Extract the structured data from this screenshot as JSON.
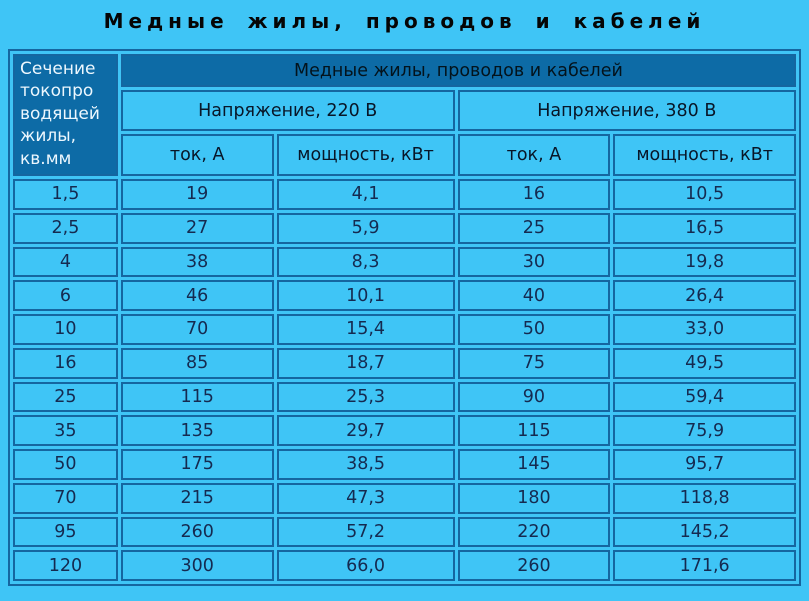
{
  "title": "Медные жилы, проводов и кабелей",
  "chart_data": {
    "type": "table",
    "title": "Медные жилы, проводов и кабелей",
    "corner_header": "Сечение токопроводящей жилы, кв.мм",
    "corner_header_display": "Сечение\nтокопро\nводящей\nжилы,\nкв.мм",
    "span_header": "Медные жилы, проводов и кабелей",
    "group_headers": [
      "Напряжение, 220 В",
      "Напряжение, 380 В"
    ],
    "column_headers": [
      "ток, А",
      "мощность, кВт",
      "ток, А",
      "мощность, кВт"
    ],
    "rows": [
      [
        "1,5",
        "19",
        "4,1",
        "16",
        "10,5"
      ],
      [
        "2,5",
        "27",
        "5,9",
        "25",
        "16,5"
      ],
      [
        "4",
        "38",
        "8,3",
        "30",
        "19,8"
      ],
      [
        "6",
        "46",
        "10,1",
        "40",
        "26,4"
      ],
      [
        "10",
        "70",
        "15,4",
        "50",
        "33,0"
      ],
      [
        "16",
        "85",
        "18,7",
        "75",
        "49,5"
      ],
      [
        "25",
        "115",
        "25,3",
        "90",
        "59,4"
      ],
      [
        "35",
        "135",
        "29,7",
        "115",
        "75,9"
      ],
      [
        "50",
        "175",
        "38,5",
        "145",
        "95,7"
      ],
      [
        "70",
        "215",
        "47,3",
        "180",
        "118,8"
      ],
      [
        "95",
        "260",
        "57,2",
        "220",
        "145,2"
      ],
      [
        "120",
        "300",
        "66,0",
        "260",
        "171,6"
      ]
    ]
  },
  "colors": {
    "page_background": "#3FC5F6",
    "cell_background": "#3FC5F6",
    "dark_header_background": "#0D6BA6",
    "border": "#1566A0",
    "data_text": "#152A50",
    "header_text": "#081628",
    "corner_header_text": "#ECF7FE",
    "title_text": "#050505"
  }
}
